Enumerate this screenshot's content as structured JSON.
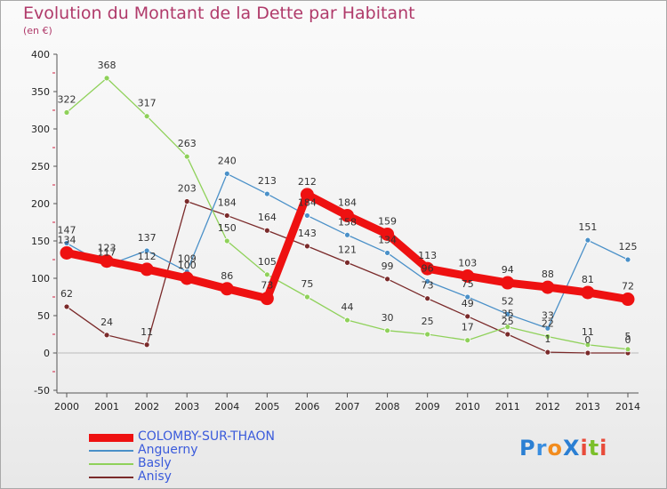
{
  "header": {
    "title": "Evolution du Montant de la Dette par Habitant",
    "subtitle": "(en €)"
  },
  "logo": {
    "text": "Proxiti",
    "letters": [
      {
        "ch": "P",
        "color": "#2b7fd3"
      },
      {
        "ch": "r",
        "color": "#3a8ee0"
      },
      {
        "ch": "o",
        "color": "#f28c1e"
      },
      {
        "ch": "X",
        "color": "#2b7fd3"
      },
      {
        "ch": "i",
        "color": "#e84b3a"
      },
      {
        "ch": "t",
        "color": "#7bbf2a"
      },
      {
        "ch": "i",
        "color": "#e84b3a"
      }
    ]
  },
  "chart_data": {
    "type": "line",
    "title": "Evolution du Montant de la Dette par Habitant",
    "subtitle": "(en €)",
    "xlabel": "",
    "ylabel": "",
    "x": [
      "2000",
      "2001",
      "2002",
      "2003",
      "2004",
      "2005",
      "2006",
      "2007",
      "2008",
      "2009",
      "2010",
      "2011",
      "2012",
      "2013",
      "2014"
    ],
    "ylim": [
      -50,
      400
    ],
    "yticks": [
      -50,
      0,
      50,
      100,
      150,
      200,
      250,
      300,
      350,
      400
    ],
    "grid": false,
    "legend_position": "bottom-left",
    "series": [
      {
        "name": "COLOMBY-SUR-THAON",
        "color": "#ee1111",
        "emphasis": true,
        "values": [
          134,
          123,
          112,
          100,
          86,
          73,
          212,
          184,
          159,
          113,
          103,
          94,
          88,
          81,
          72
        ],
        "labels": [
          "134",
          "123",
          "112",
          "100",
          "86",
          "73",
          "212",
          "184",
          "159",
          "113",
          "103",
          "94",
          "88",
          "81",
          "72"
        ]
      },
      {
        "name": "Anguerny",
        "color": "#4a90c8",
        "values": [
          147,
          117,
          137,
          109,
          240,
          213,
          184,
          158,
          134,
          96,
          75,
          52,
          33,
          151,
          125
        ],
        "labels": [
          "147",
          "117",
          "137",
          "109",
          "240",
          "213",
          "184",
          "158",
          "134",
          "96",
          "75",
          "52",
          "33",
          "151",
          "125"
        ]
      },
      {
        "name": "Basly",
        "color": "#8fd15a",
        "values": [
          322,
          368,
          317,
          263,
          150,
          105,
          75,
          44,
          30,
          25,
          17,
          35,
          22,
          11,
          5
        ],
        "labels": [
          "322",
          "368",
          "317",
          "263",
          "150",
          "105",
          "75",
          "44",
          "30",
          "25",
          "17",
          "35",
          "22",
          "11",
          "5"
        ]
      },
      {
        "name": "Anisy",
        "color": "#7a2a2a",
        "values": [
          62,
          24,
          11,
          203,
          184,
          164,
          143,
          121,
          99,
          73,
          49,
          25,
          1,
          0,
          0
        ],
        "labels": [
          "62",
          "24",
          "11",
          "203",
          "184",
          "164",
          "143",
          "121",
          "99",
          "73",
          "49",
          "25",
          "1",
          "0",
          "0"
        ]
      }
    ]
  }
}
